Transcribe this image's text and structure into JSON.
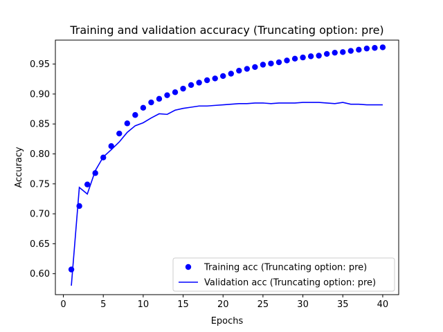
{
  "chart_data": {
    "type": "line",
    "title": "Training and validation accuracy (Truncating option: pre)",
    "xlabel": "Epochs",
    "ylabel": "Accuracy",
    "xlim": [
      -1,
      42
    ],
    "ylim": [
      0.565,
      0.99
    ],
    "x_ticks": [
      0,
      5,
      10,
      15,
      20,
      25,
      30,
      35,
      40
    ],
    "y_ticks": [
      0.6,
      0.65,
      0.7,
      0.75,
      0.8,
      0.85,
      0.9,
      0.95
    ],
    "grid": false,
    "legend_position": "lower-right",
    "x": [
      1,
      2,
      3,
      4,
      5,
      6,
      7,
      8,
      9,
      10,
      11,
      12,
      13,
      14,
      15,
      16,
      17,
      18,
      19,
      20,
      21,
      22,
      23,
      24,
      25,
      26,
      27,
      28,
      29,
      30,
      31,
      32,
      33,
      34,
      35,
      36,
      37,
      38,
      39,
      40
    ],
    "series": [
      {
        "name": "Training acc (Truncating option: pre)",
        "style": "markers",
        "color": "#0000ff",
        "values": [
          0.607,
          0.713,
          0.749,
          0.768,
          0.794,
          0.813,
          0.834,
          0.851,
          0.865,
          0.877,
          0.886,
          0.892,
          0.898,
          0.903,
          0.909,
          0.915,
          0.919,
          0.923,
          0.926,
          0.93,
          0.934,
          0.939,
          0.942,
          0.945,
          0.949,
          0.951,
          0.953,
          0.956,
          0.959,
          0.961,
          0.963,
          0.964,
          0.967,
          0.969,
          0.97,
          0.972,
          0.974,
          0.976,
          0.977,
          0.978
        ]
      },
      {
        "name": "Validation acc (Truncating option: pre)",
        "style": "line",
        "color": "#0000ff",
        "values": [
          0.58,
          0.744,
          0.733,
          0.772,
          0.795,
          0.807,
          0.82,
          0.836,
          0.847,
          0.852,
          0.86,
          0.867,
          0.866,
          0.873,
          0.876,
          0.878,
          0.88,
          0.88,
          0.881,
          0.882,
          0.883,
          0.884,
          0.884,
          0.885,
          0.885,
          0.884,
          0.885,
          0.885,
          0.885,
          0.886,
          0.886,
          0.886,
          0.885,
          0.884,
          0.886,
          0.883,
          0.883,
          0.882,
          0.882,
          0.882
        ]
      }
    ]
  }
}
